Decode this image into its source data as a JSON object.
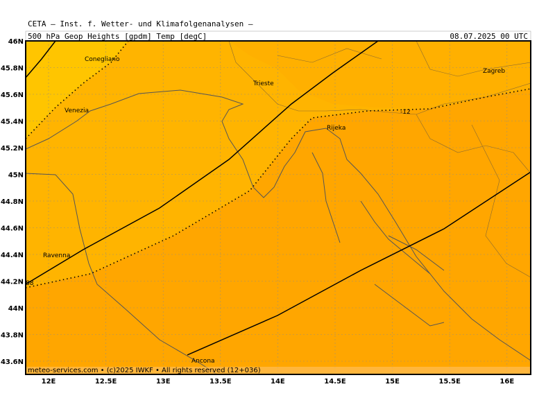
{
  "header": {
    "title": "CETA — Inst. f. Wetter- und Klimafolgenanalysen —",
    "subtitle": "500_hPa_Geop_Heights_[gpdm]_Temp_[degC]",
    "valid": "08.07.2025 00 UTC"
  },
  "map": {
    "lat_labels": [
      "46N",
      "45.8N",
      "45.6N",
      "45.4N",
      "45.2N",
      "45N",
      "44.8N",
      "44.6N",
      "44.4N",
      "44.2N",
      "44N",
      "43.8N",
      "43.6N"
    ],
    "lon_labels": [
      "12E",
      "12.5E",
      "13E",
      "13.5E",
      "14E",
      "14.5E",
      "15E",
      "15.5E",
      "16E"
    ],
    "cities": [
      "Conegliano",
      "Venezia",
      "Trieste",
      "Rijeka",
      "Zagreb",
      "Ravenna",
      "Ancona"
    ],
    "contour_labels": [
      "-12",
      "88"
    ]
  },
  "footer": "meteo-services.com • (c)2025 IWKF • All rights reserved (12+036)"
}
